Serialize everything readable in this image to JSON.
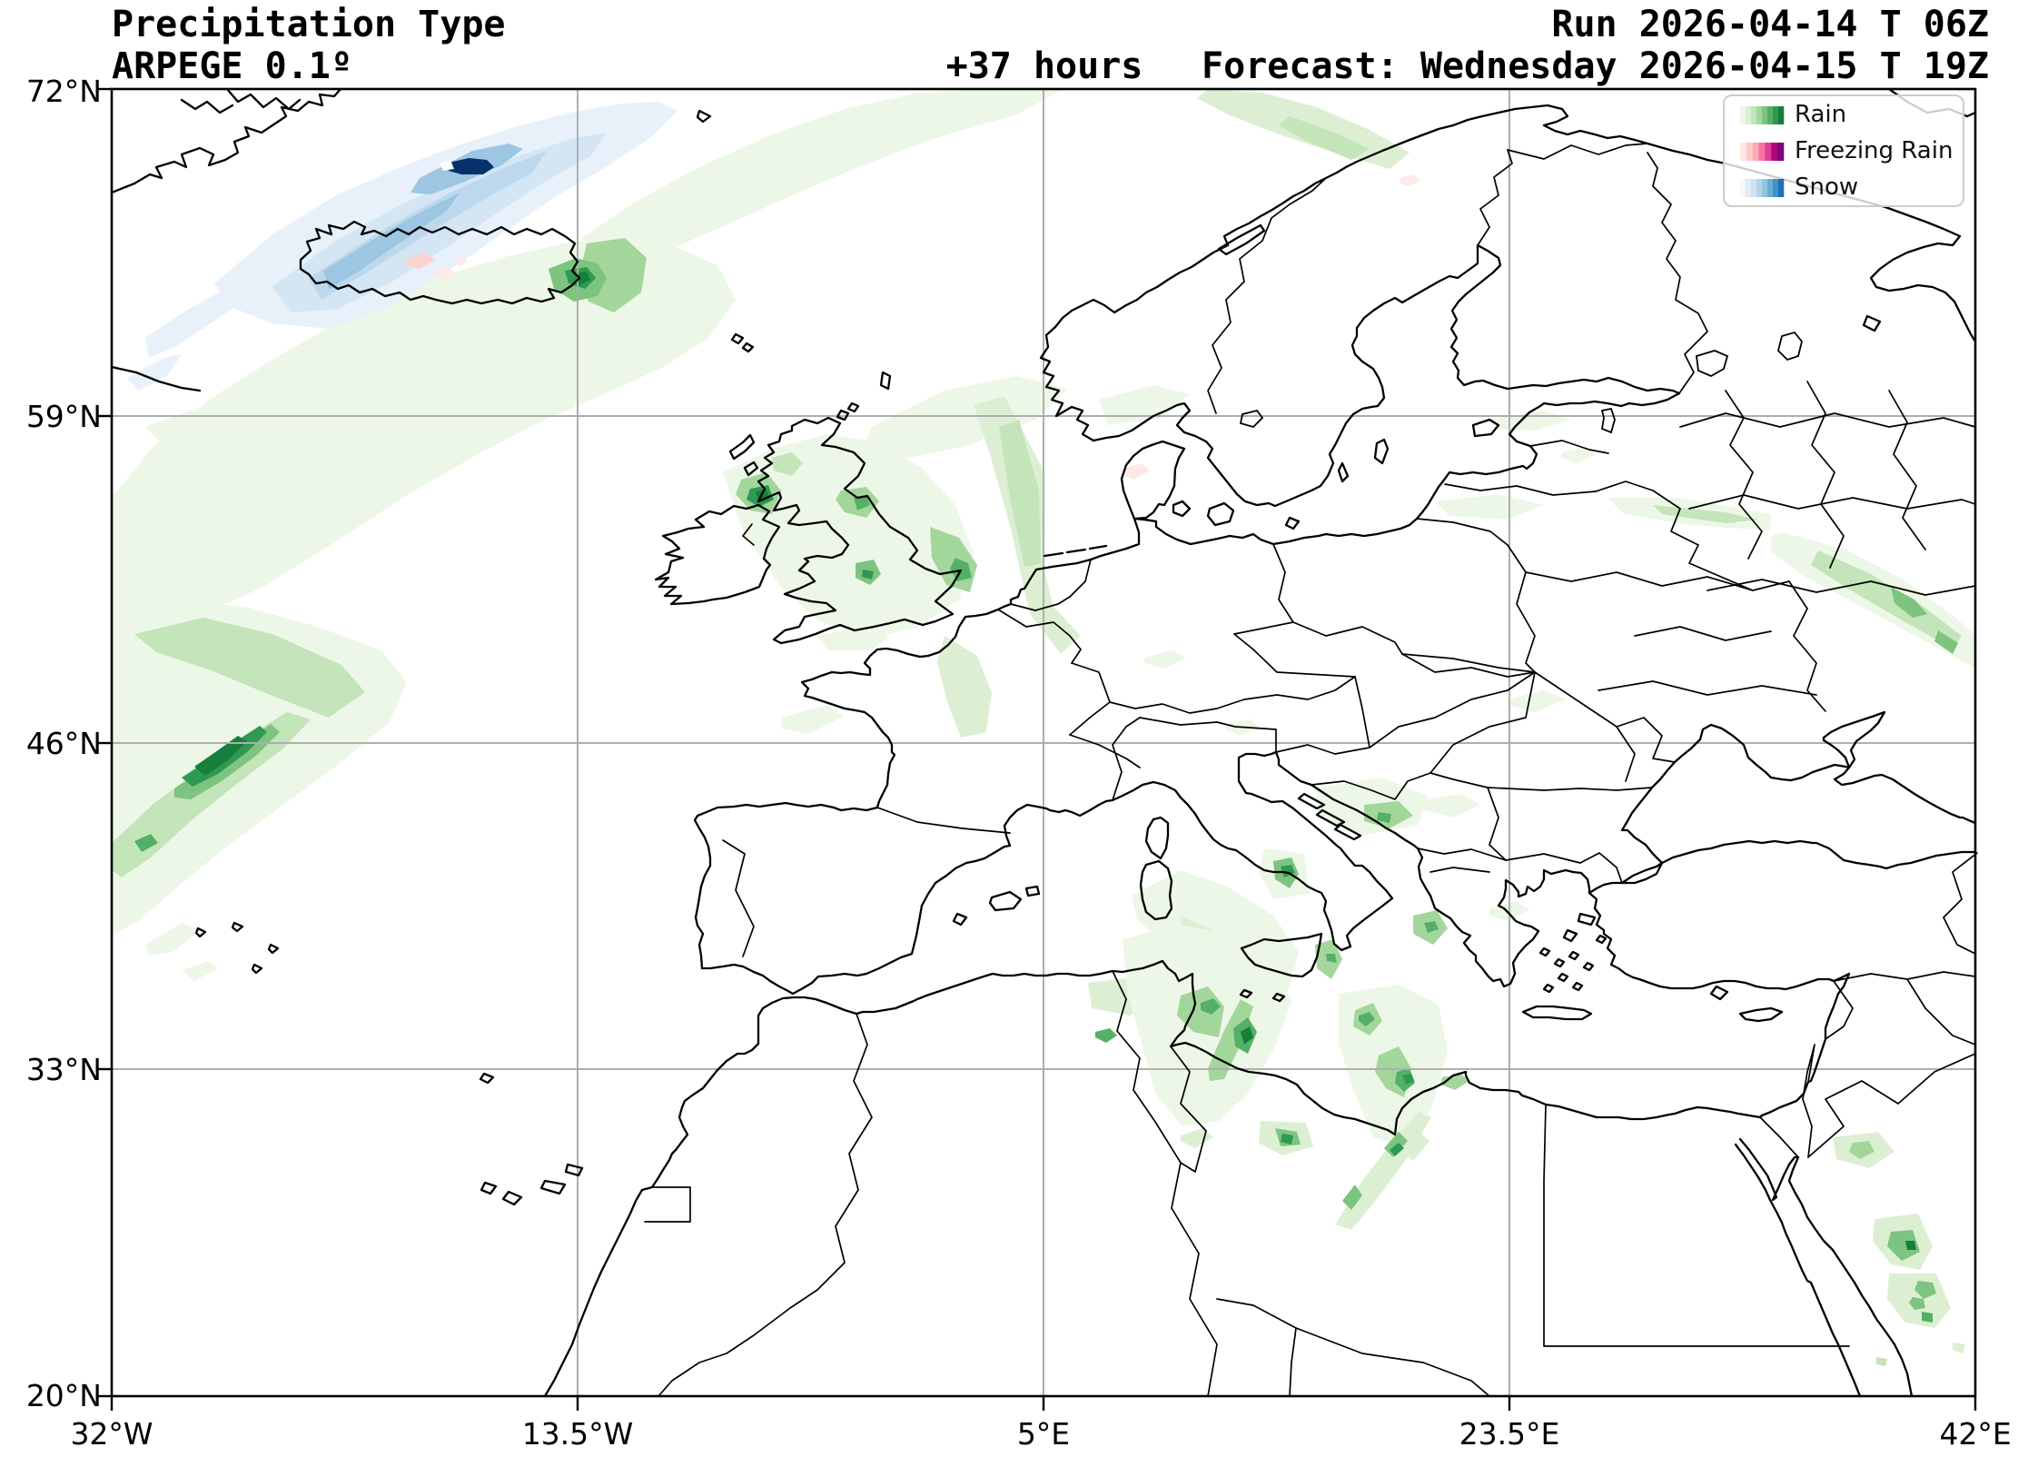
{
  "header": {
    "title": "Precipitation Type",
    "model": "ARPEGE 0.1º",
    "lead_time": "+37 hours",
    "run": "Run 2026-04-14 T 06Z",
    "forecast": "Forecast: Wednesday 2026-04-15 T 19Z"
  },
  "axes": {
    "x_ticks": [
      "32°W",
      "13.5°W",
      "5°E",
      "23.5°E",
      "42°E"
    ],
    "y_ticks": [
      "72°N",
      "59°N",
      "46°N",
      "33°N",
      "20°N"
    ]
  },
  "legend": {
    "items": [
      {
        "label": "Rain",
        "colors": [
          "#edf7e7",
          "#dcefd3",
          "#c4e4b9",
          "#a3d69b",
          "#7cc47f",
          "#54b066",
          "#2f9852",
          "#157f3b"
        ]
      },
      {
        "label": "Freezing Rain",
        "colors": [
          "#fde5e3",
          "#fcc9c5",
          "#faaab6",
          "#f573a0",
          "#dd3d95",
          "#ad067e",
          "#7a0177"
        ]
      },
      {
        "label": "Snow",
        "colors": [
          "#f3f8fd",
          "#e2edf8",
          "#cfe1f2",
          "#b5d4e9",
          "#94c4df",
          "#6aadd5",
          "#4292c6",
          "#2171b5"
        ]
      }
    ]
  },
  "colors": {
    "grid": "#aeaeae",
    "coastline": "#000000",
    "frame": "#000000",
    "legend_border": "#cccccc",
    "snow_extreme_core": "#08306b",
    "background": "#ffffff"
  }
}
